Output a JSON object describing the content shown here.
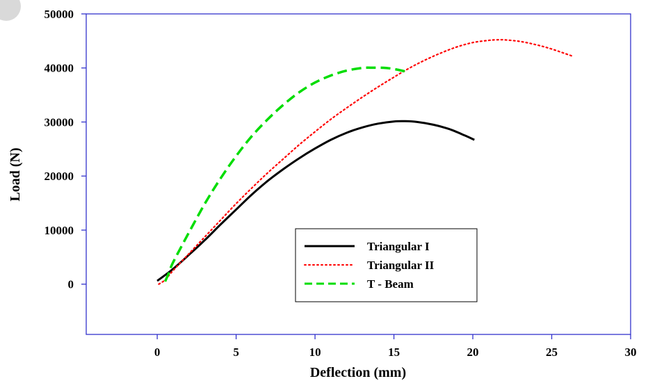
{
  "chart_data": {
    "type": "line",
    "title": "",
    "xlabel": "Deflection (mm)",
    "ylabel": "Load (N)",
    "xlim": [
      -4.5,
      30
    ],
    "ylim": [
      -9300,
      50000
    ],
    "xticks": [
      0,
      5,
      10,
      15,
      20,
      25,
      30
    ],
    "yticks": [
      0,
      10000,
      20000,
      30000,
      40000,
      50000
    ],
    "xtick_labels": [
      "0",
      "5",
      "10",
      "15",
      "20",
      "25",
      "30"
    ],
    "ytick_labels": [
      "0",
      "10000",
      "20000",
      "30000",
      "40000",
      "50000"
    ],
    "grid": false,
    "legend_position": "lower-center",
    "axis_color": "#3333cc",
    "series": [
      {
        "name": "Triangular I",
        "color": "#000000",
        "style": "solid",
        "x": [
          0,
          1,
          2,
          3,
          4,
          5,
          6,
          7,
          8,
          9,
          10,
          11,
          12,
          13,
          14,
          15,
          15.7,
          16.5,
          17.5,
          18.5,
          19.5,
          20.1
        ],
        "y": [
          600,
          2800,
          5400,
          8100,
          11000,
          13800,
          16600,
          19100,
          21300,
          23300,
          25100,
          26700,
          28000,
          29000,
          29700,
          30100,
          30150,
          30000,
          29500,
          28700,
          27500,
          26700
        ]
      },
      {
        "name": "Triangular II",
        "color": "#ff0000",
        "style": "dotted",
        "x": [
          0.1,
          0.5,
          1,
          2,
          3,
          4,
          5,
          6,
          7,
          8,
          9,
          10,
          11,
          12,
          13,
          14,
          15,
          16,
          17,
          18,
          19,
          20,
          21,
          21.5,
          22,
          23,
          24,
          25,
          26.4
        ],
        "y": [
          0,
          800,
          2500,
          5600,
          8700,
          11800,
          14900,
          17800,
          20600,
          23200,
          25800,
          28200,
          30500,
          32600,
          34600,
          36500,
          38300,
          40000,
          41500,
          42800,
          43900,
          44700,
          45100,
          45200,
          45200,
          44900,
          44300,
          43500,
          42100
        ]
      },
      {
        "name": "T - Beam",
        "color": "#00dd00",
        "style": "dashed",
        "x": [
          0.5,
          0.8,
          1,
          2,
          3,
          4,
          5,
          6,
          7,
          8,
          9,
          10,
          11,
          12,
          13,
          13.7,
          14.5,
          15.2,
          15.8
        ],
        "y": [
          500,
          2500,
          4000,
          9500,
          14800,
          19500,
          23700,
          27400,
          30500,
          33200,
          35500,
          37300,
          38600,
          39500,
          40000,
          40050,
          40000,
          39700,
          39300
        ]
      }
    ]
  }
}
